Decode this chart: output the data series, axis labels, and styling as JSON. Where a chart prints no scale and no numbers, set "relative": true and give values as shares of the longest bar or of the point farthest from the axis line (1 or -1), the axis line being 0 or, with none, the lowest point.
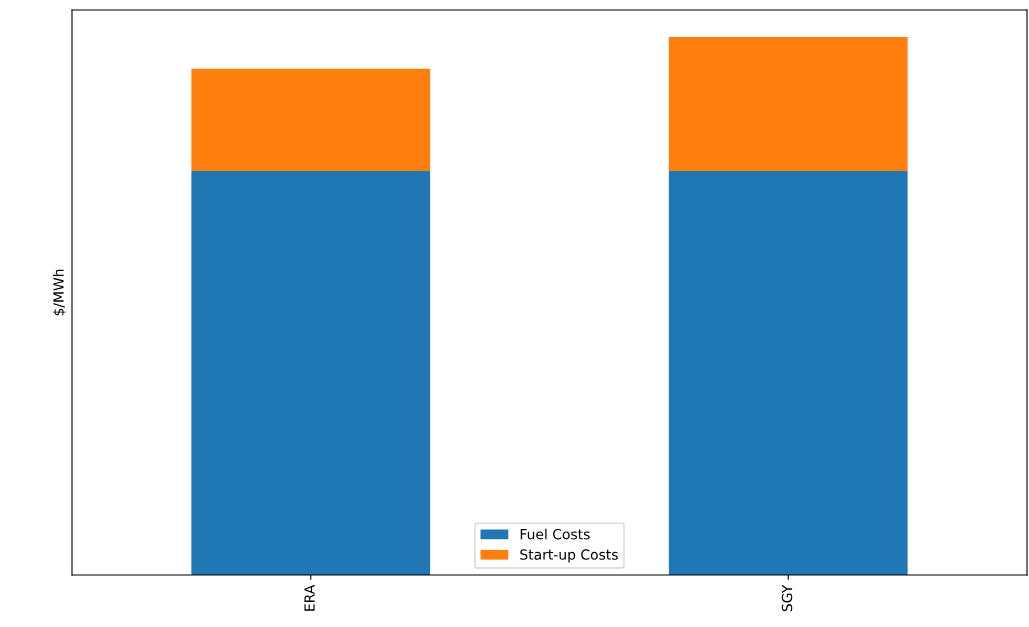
{
  "chart_data": {
    "type": "bar",
    "stacked": true,
    "relative": true,
    "ylabel": "$/MWh",
    "categories": [
      "ERA",
      "SGY"
    ],
    "series": [
      {
        "name": "Fuel Costs",
        "color": "#1f77b4",
        "values": [
          0.751,
          0.751
        ]
      },
      {
        "name": "Start-up Costs",
        "color": "#ff7f0e",
        "values": [
          0.19,
          0.249
        ]
      }
    ],
    "legend": "bottom",
    "grid": false
  }
}
